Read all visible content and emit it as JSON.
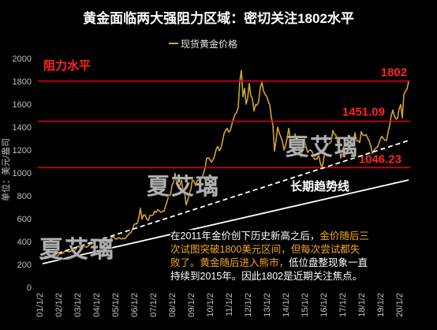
{
  "colors": {
    "background": "#000000",
    "series": "#d1a233",
    "resistance": "#d8001a",
    "resistance_label": "#ff2424",
    "trend": "#ffffff",
    "highlight": "#f2a81d",
    "text": "#ffffff",
    "axis_text": "#bfbfbf"
  },
  "watermarks": [
    "夏艾璃",
    "夏艾璃",
    "夏艾璃"
  ],
  "annotation": {
    "lines": [
      [
        {
          "text": "在2011年金价创下历史新高之后，",
          "highlight": false
        },
        {
          "text": "金价随后三",
          "highlight": true
        }
      ],
      [
        {
          "text": "次试图突破1800美元区间，但每次尝试都失",
          "highlight": true
        }
      ],
      [
        {
          "text": "败了。黄金随后进入熊市，",
          "highlight": true
        },
        {
          "text": "低位盘整现象一直",
          "highlight": false
        }
      ],
      [
        {
          "text": "持续到2015年。因此1802是近期关注焦点。",
          "highlight": false
        }
      ]
    ]
  },
  "chart_data": {
    "type": "line",
    "title": "黄金面临两大强阻力区域：密切关注1802水平",
    "xlabel": "",
    "ylabel": "单位：美元/盎司",
    "ylim": [
      0,
      2000
    ],
    "yticks": [
      0,
      200,
      400,
      600,
      800,
      1000,
      1200,
      1400,
      1600,
      1800,
      2000
    ],
    "xticks": [
      "01/1/2",
      "02/1/2",
      "03/1/2",
      "04/1/2",
      "05/1/2",
      "06/1/2",
      "07/1/2",
      "08/1/2",
      "09/1/2",
      "10/1/2",
      "11/1/2",
      "12/1/2",
      "13/1/2",
      "14/1/2",
      "15/1/2",
      "16/1/2",
      "17/1/2",
      "18/1/2",
      "19/1/2",
      "20/1/2"
    ],
    "grid": false,
    "legend_position": "top",
    "series": [
      {
        "name": "现货黄金价格",
        "points": [
          [
            "2001-01",
            266
          ],
          [
            "2001-02",
            262
          ],
          [
            "2001-03",
            263
          ],
          [
            "2001-04",
            260
          ],
          [
            "2001-05",
            272
          ],
          [
            "2001-06",
            270
          ],
          [
            "2001-07",
            268
          ],
          [
            "2001-08",
            273
          ],
          [
            "2001-09",
            283
          ],
          [
            "2001-10",
            279
          ],
          [
            "2001-11",
            276
          ],
          [
            "2001-12",
            276
          ],
          [
            "2002-01",
            282
          ],
          [
            "2002-02",
            296
          ],
          [
            "2002-03",
            294
          ],
          [
            "2002-04",
            303
          ],
          [
            "2002-05",
            314
          ],
          [
            "2002-06",
            321
          ],
          [
            "2002-07",
            314
          ],
          [
            "2002-08",
            310
          ],
          [
            "2002-09",
            319
          ],
          [
            "2002-10",
            317
          ],
          [
            "2002-11",
            319
          ],
          [
            "2002-12",
            333
          ],
          [
            "2003-01",
            357
          ],
          [
            "2003-02",
            359
          ],
          [
            "2003-03",
            340
          ],
          [
            "2003-04",
            328
          ],
          [
            "2003-05",
            355
          ],
          [
            "2003-06",
            356
          ],
          [
            "2003-07",
            351
          ],
          [
            "2003-08",
            360
          ],
          [
            "2003-09",
            379
          ],
          [
            "2003-10",
            379
          ],
          [
            "2003-11",
            389
          ],
          [
            "2003-12",
            407
          ],
          [
            "2004-01",
            414
          ],
          [
            "2004-02",
            405
          ],
          [
            "2004-03",
            406
          ],
          [
            "2004-04",
            404
          ],
          [
            "2004-05",
            384
          ],
          [
            "2004-06",
            392
          ],
          [
            "2004-07",
            398
          ],
          [
            "2004-08",
            401
          ],
          [
            "2004-09",
            406
          ],
          [
            "2004-10",
            420
          ],
          [
            "2004-11",
            439
          ],
          [
            "2004-12",
            442
          ],
          [
            "2005-01",
            424
          ],
          [
            "2005-02",
            423
          ],
          [
            "2005-03",
            434
          ],
          [
            "2005-04",
            429
          ],
          [
            "2005-05",
            422
          ],
          [
            "2005-06",
            430
          ],
          [
            "2005-07",
            424
          ],
          [
            "2005-08",
            437
          ],
          [
            "2005-09",
            456
          ],
          [
            "2005-10",
            470
          ],
          [
            "2005-11",
            476
          ],
          [
            "2005-12",
            510
          ],
          [
            "2006-01",
            549
          ],
          [
            "2006-02",
            555
          ],
          [
            "2006-03",
            557
          ],
          [
            "2006-04",
            610
          ],
          [
            "2006-05",
            690
          ],
          [
            "2006-06",
            596
          ],
          [
            "2006-07",
            633
          ],
          [
            "2006-08",
            632
          ],
          [
            "2006-09",
            598
          ],
          [
            "2006-10",
            585
          ],
          [
            "2006-11",
            627
          ],
          [
            "2006-12",
            629
          ],
          [
            "2007-01",
            631
          ],
          [
            "2007-02",
            665
          ],
          [
            "2007-03",
            655
          ],
          [
            "2007-04",
            679
          ],
          [
            "2007-05",
            667
          ],
          [
            "2007-06",
            655
          ],
          [
            "2007-07",
            665
          ],
          [
            "2007-08",
            665
          ],
          [
            "2007-09",
            712
          ],
          [
            "2007-10",
            754
          ],
          [
            "2007-11",
            806
          ],
          [
            "2007-12",
            803
          ],
          [
            "2008-01",
            889
          ],
          [
            "2008-02",
            922
          ],
          [
            "2008-03",
            995
          ],
          [
            "2008-04",
            909
          ],
          [
            "2008-05",
            888
          ],
          [
            "2008-06",
            889
          ],
          [
            "2008-07",
            939
          ],
          [
            "2008-08",
            839
          ],
          [
            "2008-09",
            829
          ],
          [
            "2008-10",
            720
          ],
          [
            "2008-11",
            760
          ],
          [
            "2008-12",
            816
          ],
          [
            "2009-01",
            858
          ],
          [
            "2009-02",
            943
          ],
          [
            "2009-03",
            924
          ],
          [
            "2009-04",
            890
          ],
          [
            "2009-05",
            928
          ],
          [
            "2009-06",
            945
          ],
          [
            "2009-07",
            934
          ],
          [
            "2009-08",
            949
          ],
          [
            "2009-09",
            996
          ],
          [
            "2009-10",
            1043
          ],
          [
            "2009-11",
            1127
          ],
          [
            "2009-12",
            1134
          ],
          [
            "2010-01",
            1118
          ],
          [
            "2010-02",
            1095
          ],
          [
            "2010-03",
            1113
          ],
          [
            "2010-04",
            1148
          ],
          [
            "2010-05",
            1205
          ],
          [
            "2010-06",
            1232
          ],
          [
            "2010-07",
            1193
          ],
          [
            "2010-08",
            1215
          ],
          [
            "2010-09",
            1271
          ],
          [
            "2010-10",
            1342
          ],
          [
            "2010-11",
            1370
          ],
          [
            "2010-12",
            1391
          ],
          [
            "2011-01",
            1356
          ],
          [
            "2011-02",
            1372
          ],
          [
            "2011-03",
            1424
          ],
          [
            "2011-04",
            1473
          ],
          [
            "2011-05",
            1510
          ],
          [
            "2011-06",
            1528
          ],
          [
            "2011-07",
            1572
          ],
          [
            "2011-08",
            1800
          ],
          [
            "2011-09",
            1895
          ],
          [
            "2011-10",
            1665
          ],
          [
            "2011-11",
            1738
          ],
          [
            "2011-12",
            1600
          ],
          [
            "2012-01",
            1656
          ],
          [
            "2012-02",
            1780
          ],
          [
            "2012-03",
            1673
          ],
          [
            "2012-04",
            1650
          ],
          [
            "2012-05",
            1540
          ],
          [
            "2012-06",
            1596
          ],
          [
            "2012-07",
            1594
          ],
          [
            "2012-08",
            1626
          ],
          [
            "2012-09",
            1744
          ],
          [
            "2012-10",
            1790
          ],
          [
            "2012-11",
            1721
          ],
          [
            "2012-12",
            1684
          ],
          [
            "2013-01",
            1671
          ],
          [
            "2013-02",
            1627
          ],
          [
            "2013-03",
            1593
          ],
          [
            "2013-04",
            1487
          ],
          [
            "2013-05",
            1414
          ],
          [
            "2013-06",
            1190
          ],
          [
            "2013-07",
            1286
          ],
          [
            "2013-08",
            1400
          ],
          [
            "2013-09",
            1349
          ],
          [
            "2013-10",
            1316
          ],
          [
            "2013-11",
            1275
          ],
          [
            "2013-12",
            1200
          ],
          [
            "2014-01",
            1244
          ],
          [
            "2014-02",
            1300
          ],
          [
            "2014-03",
            1390
          ],
          [
            "2014-04",
            1299
          ],
          [
            "2014-05",
            1288
          ],
          [
            "2014-06",
            1279
          ],
          [
            "2014-07",
            1340
          ],
          [
            "2014-08",
            1296
          ],
          [
            "2014-09",
            1239
          ],
          [
            "2014-10",
            1222
          ],
          [
            "2014-11",
            1140
          ],
          [
            "2014-12",
            1200
          ],
          [
            "2015-01",
            1300
          ],
          [
            "2015-02",
            1227
          ],
          [
            "2015-03",
            1178
          ],
          [
            "2015-04",
            1198
          ],
          [
            "2015-05",
            1199
          ],
          [
            "2015-06",
            1181
          ],
          [
            "2015-07",
            1128
          ],
          [
            "2015-08",
            1117
          ],
          [
            "2015-09",
            1125
          ],
          [
            "2015-10",
            1157
          ],
          [
            "2015-11",
            1086
          ],
          [
            "2015-12",
            1050
          ],
          [
            "2016-01",
            1097
          ],
          [
            "2016-02",
            1199
          ],
          [
            "2016-03",
            1246
          ],
          [
            "2016-04",
            1242
          ],
          [
            "2016-05",
            1260
          ],
          [
            "2016-06",
            1276
          ],
          [
            "2016-07",
            1370
          ],
          [
            "2016-08",
            1340
          ],
          [
            "2016-09",
            1326
          ],
          [
            "2016-10",
            1266
          ],
          [
            "2016-11",
            1236
          ],
          [
            "2016-12",
            1130
          ],
          [
            "2017-01",
            1192
          ],
          [
            "2017-02",
            1234
          ],
          [
            "2017-03",
            1231
          ],
          [
            "2017-04",
            1266
          ],
          [
            "2017-05",
            1246
          ],
          [
            "2017-06",
            1260
          ],
          [
            "2017-07",
            1236
          ],
          [
            "2017-08",
            1283
          ],
          [
            "2017-09",
            1350
          ],
          [
            "2017-10",
            1280
          ],
          [
            "2017-11",
            1282
          ],
          [
            "2017-12",
            1265
          ],
          [
            "2018-01",
            1360
          ],
          [
            "2018-02",
            1331
          ],
          [
            "2018-03",
            1325
          ],
          [
            "2018-04",
            1335
          ],
          [
            "2018-05",
            1304
          ],
          [
            "2018-06",
            1281
          ],
          [
            "2018-07",
            1238
          ],
          [
            "2018-08",
            1170
          ],
          [
            "2018-09",
            1198
          ],
          [
            "2018-10",
            1215
          ],
          [
            "2018-11",
            1221
          ],
          [
            "2018-12",
            1250
          ],
          [
            "2019-01",
            1291
          ],
          [
            "2019-02",
            1320
          ],
          [
            "2019-03",
            1300
          ],
          [
            "2019-04",
            1285
          ],
          [
            "2019-05",
            1283
          ],
          [
            "2019-06",
            1359
          ],
          [
            "2019-07",
            1413
          ],
          [
            "2019-08",
            1500
          ],
          [
            "2019-09",
            1550
          ],
          [
            "2019-10",
            1495
          ],
          [
            "2019-11",
            1470
          ],
          [
            "2019-12",
            1479
          ],
          [
            "2020-01",
            1560
          ],
          [
            "2020-02",
            1597
          ],
          [
            "2020-03",
            1480
          ],
          [
            "2020-04",
            1683
          ],
          [
            "2020-05",
            1715
          ],
          [
            "2020-06",
            1732
          ],
          [
            "2020-07",
            1800
          ]
        ]
      }
    ],
    "reference_lines": {
      "title": "阻力水平",
      "lines": [
        {
          "value": 1802,
          "label": "1802"
        },
        {
          "value": 1451.09,
          "label": "1451.09"
        },
        {
          "value": 1046.23,
          "label": "1046.23"
        }
      ]
    },
    "trend_lines": [
      {
        "dashed": true,
        "from": [
          "2001-03",
          255
        ],
        "to": [
          "2020-07",
          1283
        ]
      },
      {
        "dashed": false,
        "label": "长期趋势线",
        "from": [
          "2001-03",
          207
        ],
        "to": [
          "2020-07",
          938
        ]
      }
    ]
  }
}
